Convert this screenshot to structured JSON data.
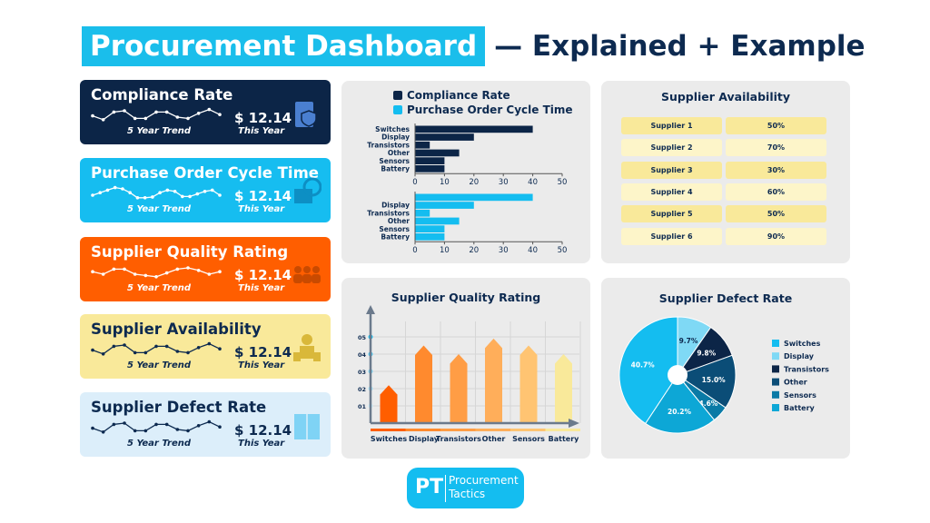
{
  "title": {
    "highlight": "Procurement Dashboard",
    "rest": "— Explained + Example"
  },
  "cards": [
    {
      "title": "Compliance Rate",
      "trend_label": "5 Year Trend",
      "value": "$ 12.14",
      "value_label": "This Year",
      "icon": "clipboard-shield-icon",
      "bg": "#0c2547",
      "fg": "#ffffff",
      "line": "#ffffff",
      "trend": [
        3,
        1.5,
        4.5,
        5,
        2,
        2,
        4.5,
        4.5,
        2.5,
        2,
        4,
        5.5,
        3.5
      ]
    },
    {
      "title": "Purchase Order Cycle Time",
      "trend_label": "5 Year Trend",
      "value": "$ 12.14",
      "value_label": "This Year",
      "icon": "box-clock-icon",
      "bg": "#16bdf0",
      "fg": "#ffffff",
      "line": "#ffffff",
      "trend": [
        2.5,
        3.5,
        4.5,
        5.5,
        5,
        3.5,
        1.5,
        1.5,
        1.8,
        3.5,
        4.5,
        4,
        2,
        2,
        3,
        4,
        4.5,
        2.5
      ]
    },
    {
      "title": "Supplier Quality Rating",
      "trend_label": "5 Year Trend",
      "value": "$ 12.14",
      "value_label": "This Year",
      "icon": "team-stars-icon",
      "bg": "#ff5e00",
      "fg": "#ffffff",
      "line": "#ffffff",
      "trend": [
        3.5,
        2.5,
        4.5,
        4.5,
        2.5,
        2,
        1.5,
        3,
        4.5,
        5,
        4,
        2.5,
        3.5
      ]
    },
    {
      "title": "Supplier Availability",
      "trend_label": "5 Year Trend",
      "value": "$ 12.14",
      "value_label": "This Year",
      "icon": "supplier-boxes-icon",
      "bg": "#f9e99a",
      "fg": "#0d2a50",
      "line": "#0d2a50",
      "trend": [
        3,
        1.5,
        4.5,
        5,
        2,
        2,
        4.5,
        4.5,
        2.5,
        2,
        4,
        5.5,
        3.5
      ]
    },
    {
      "title": "Supplier Defect Rate",
      "trend_label": "5 Year Trend",
      "value": "$ 12.14",
      "value_label": "This Year",
      "icon": "package-chart-icon",
      "bg": "#dceefa",
      "fg": "#0d2a50",
      "line": "#0d2a50",
      "trend": [
        3,
        1.5,
        4.5,
        5,
        2,
        2,
        4.5,
        4.5,
        2.5,
        2,
        4,
        5.5,
        3.5
      ]
    }
  ],
  "availability": {
    "title": "Supplier Availability",
    "rows": [
      {
        "name": "Supplier 1",
        "value": "50%"
      },
      {
        "name": "Supplier 2",
        "value": "70%"
      },
      {
        "name": "Supplier 3",
        "value": "30%"
      },
      {
        "name": "Supplier 4",
        "value": "60%"
      },
      {
        "name": "Supplier 5",
        "value": "50%"
      },
      {
        "name": "Supplier 6",
        "value": "90%"
      }
    ]
  },
  "logo": {
    "mark": "PT",
    "line1": "Procurement",
    "line2": "Tactics"
  },
  "chart_data": [
    {
      "type": "bar",
      "orientation": "horizontal",
      "legend": [
        "Compliance Rate",
        "Purchase Order Cycle Time"
      ],
      "legend_colors": [
        "#0c2547",
        "#14bdf0"
      ],
      "xlim": [
        0,
        50
      ],
      "xticks": [
        "0",
        "10",
        "20",
        "30",
        "40",
        "50"
      ],
      "series": [
        {
          "name": "Compliance Rate",
          "color": "#0c2547",
          "categories": [
            "Switches",
            "Display",
            "Transistors",
            "Other",
            "Sensors",
            "Battery"
          ],
          "values": [
            40,
            20,
            5,
            15,
            10,
            10
          ]
        },
        {
          "name": "Purchase Order Cycle Time",
          "color": "#14bdf0",
          "categories": [
            "",
            "Display",
            "Transistors",
            "Other",
            "Sensors",
            "Battery"
          ],
          "values": [
            40,
            20,
            5,
            15,
            10,
            10
          ]
        }
      ]
    },
    {
      "type": "bar",
      "title": "Supplier Quality Rating",
      "categories": [
        "Switches",
        "Display",
        "Transistors",
        "Other",
        "Sensors",
        "Battery"
      ],
      "values": [
        2.2,
        4.5,
        4.0,
        4.9,
        4.5,
        4.0
      ],
      "ylim": [
        0,
        5.5
      ],
      "yticks": [
        "01",
        "02",
        "03",
        "04",
        "05"
      ],
      "colors": [
        "#ff5e00",
        "#ff8a2e",
        "#ff9d45",
        "#ffae5a",
        "#ffc472",
        "#f9e99a"
      ],
      "grid": true
    },
    {
      "type": "pie",
      "title": "Supplier Defect Rate",
      "legend_position": "right",
      "slices": [
        {
          "label": "Display",
          "value": 9.7,
          "text": "9.7%",
          "color": "#7fd9f5"
        },
        {
          "label": "Transistors",
          "value": 9.8,
          "text": "9.8%",
          "color": "#0c2547"
        },
        {
          "label": "Other",
          "value": 15.0,
          "text": "15.0%",
          "color": "#0b4d77"
        },
        {
          "label": "Sensors",
          "value": 4.6,
          "text": "4.6%",
          "color": "#0a7aa6"
        },
        {
          "label": "Battery",
          "value": 20.2,
          "text": "20.2%",
          "color": "#0da7d6"
        },
        {
          "label": "Switches",
          "value": 40.7,
          "text": "40.7%",
          "color": "#14bdf0"
        }
      ],
      "legend": [
        {
          "label": "Switches",
          "color": "#14bdf0"
        },
        {
          "label": "Display",
          "color": "#7fd9f5"
        },
        {
          "label": "Transistors",
          "color": "#0c2547"
        },
        {
          "label": "Other",
          "color": "#0b4d77"
        },
        {
          "label": "Sensors",
          "color": "#0a7aa6"
        },
        {
          "label": "Battery",
          "color": "#0da7d6"
        }
      ]
    }
  ]
}
